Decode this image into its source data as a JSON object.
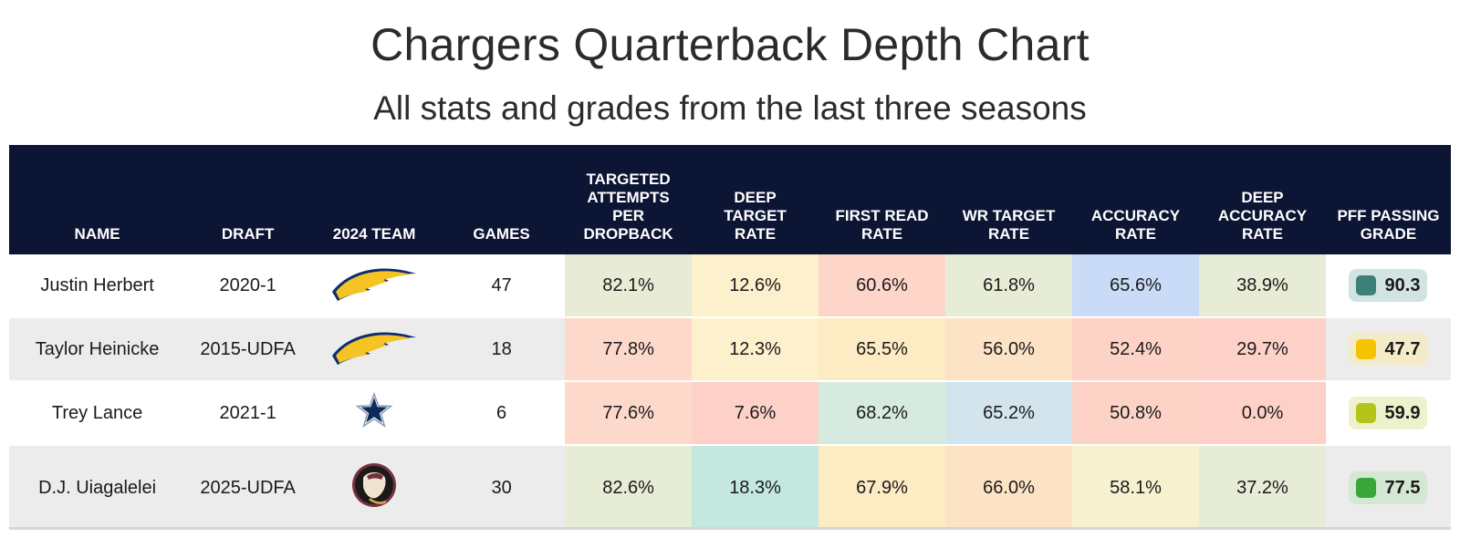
{
  "title": "Chargers Quarterback Depth Chart",
  "subtitle": "All stats and grades from the last three seasons",
  "columns": {
    "name": "NAME",
    "draft": "DRAFT",
    "team": "2024 TEAM",
    "games": "GAMES",
    "tapd_1": "TARGETED",
    "tapd_2": "ATTEMPTS",
    "tapd_3": "PER",
    "tapd_4": "DROPBACK",
    "dtr_1": "DEEP",
    "dtr_2": "TARGET",
    "dtr_3": "RATE",
    "frr_1": "FIRST READ",
    "frr_2": "RATE",
    "wr_1": "WR TARGET",
    "wr_2": "RATE",
    "acc_1": "ACCURACY",
    "acc_2": "RATE",
    "dacc_1": "DEEP",
    "dacc_2": "ACCURACY",
    "dacc_3": "RATE",
    "pff_1": "PFF PASSING",
    "pff_2": "GRADE"
  },
  "rows": [
    {
      "name": "Justin Herbert",
      "draft": "2020-1",
      "team_logo": "chargers-bolt-icon",
      "games": "47",
      "tapd": "82.1%",
      "dtr": "12.6%",
      "frr": "60.6%",
      "wr": "61.8%",
      "acc": "65.6%",
      "dacc": "38.9%",
      "pff": "90.3"
    },
    {
      "name": "Taylor Heinicke",
      "draft": "2015-UDFA",
      "team_logo": "chargers-bolt-icon",
      "games": "18",
      "tapd": "77.8%",
      "dtr": "12.3%",
      "frr": "65.5%",
      "wr": "56.0%",
      "acc": "52.4%",
      "dacc": "29.7%",
      "pff": "47.7"
    },
    {
      "name": "Trey Lance",
      "draft": "2021-1",
      "team_logo": "cowboys-star-icon",
      "games": "6",
      "tapd": "77.6%",
      "dtr": "7.6%",
      "frr": "68.2%",
      "wr": "65.2%",
      "acc": "50.8%",
      "dacc": "0.0%",
      "pff": "59.9"
    },
    {
      "name": "D.J. Uiagalelei",
      "draft": "2025-UDFA",
      "team_logo": "fsu-seminole-icon",
      "games": "30",
      "tapd": "82.6%",
      "dtr": "18.3%",
      "frr": "67.9%",
      "wr": "66.0%",
      "acc": "58.1%",
      "dacc": "37.2%",
      "pff": "77.5"
    }
  ],
  "colors": {
    "header_bg": "#0c1533",
    "row_alt": "#ececec",
    "cells": [
      [
        "#e8ecd6",
        "#fdf0cc",
        "#fdd5c9",
        "#e6ecd6",
        "#c9dbf6",
        "#e6ecd6"
      ],
      [
        "#fdd9cb",
        "#fdf0cc",
        "#fdebc4",
        "#fde3c6",
        "#fdd3c8",
        "#fdd0c8"
      ],
      [
        "#fdd9cb",
        "#fdd0c8",
        "#d7eadf",
        "#d4e4ec",
        "#fdd3c8",
        "#fdd0c8"
      ],
      [
        "#e6ecd6",
        "#c4e8df",
        "#fdebc4",
        "#fde3c6",
        "#f6f2d0",
        "#e6ecd6"
      ]
    ],
    "grade_bg": [
      "#d2e3e3",
      "#f4ecc9",
      "#eef2cc",
      "#d2e8d2"
    ],
    "grade_dot": [
      "#3d8078",
      "#f5c400",
      "#b5c41a",
      "#3aa63a"
    ]
  }
}
